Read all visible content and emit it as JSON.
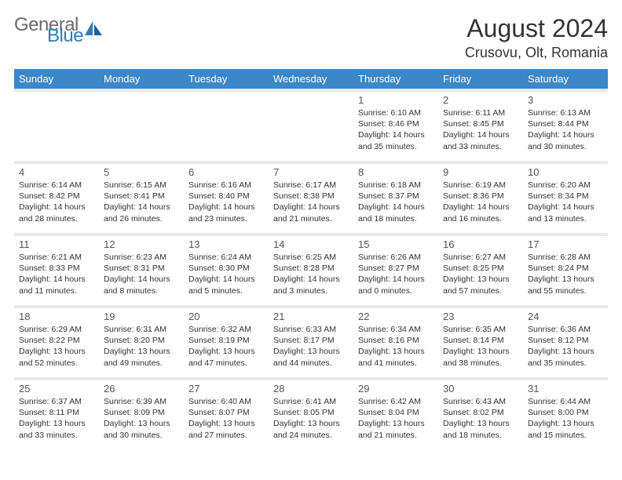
{
  "brand": {
    "part1": "General",
    "part2": "Blue"
  },
  "title": "August 2024",
  "location": "Crusovu, Olt, Romania",
  "colors": {
    "header_bg": "#3b87c8",
    "header_fg": "#ffffff",
    "sep": "#e7e9eb",
    "text": "#333333",
    "daynum": "#555555",
    "logo_gray": "#6a6a6a",
    "logo_blue": "#2f7bbf"
  },
  "typography": {
    "title_fontsize": 32,
    "location_fontsize": 18,
    "header_fontsize": 13,
    "daynum_fontsize": 13,
    "info_fontsize": 10.5
  },
  "day_headers": [
    "Sunday",
    "Monday",
    "Tuesday",
    "Wednesday",
    "Thursday",
    "Friday",
    "Saturday"
  ],
  "weeks": [
    [
      null,
      null,
      null,
      null,
      {
        "n": "1",
        "sr": "6:10 AM",
        "ss": "8:46 PM",
        "dl": "14 hours and 35 minutes."
      },
      {
        "n": "2",
        "sr": "6:11 AM",
        "ss": "8:45 PM",
        "dl": "14 hours and 33 minutes."
      },
      {
        "n": "3",
        "sr": "6:13 AM",
        "ss": "8:44 PM",
        "dl": "14 hours and 30 minutes."
      }
    ],
    [
      {
        "n": "4",
        "sr": "6:14 AM",
        "ss": "8:42 PM",
        "dl": "14 hours and 28 minutes."
      },
      {
        "n": "5",
        "sr": "6:15 AM",
        "ss": "8:41 PM",
        "dl": "14 hours and 26 minutes."
      },
      {
        "n": "6",
        "sr": "6:16 AM",
        "ss": "8:40 PM",
        "dl": "14 hours and 23 minutes."
      },
      {
        "n": "7",
        "sr": "6:17 AM",
        "ss": "8:38 PM",
        "dl": "14 hours and 21 minutes."
      },
      {
        "n": "8",
        "sr": "6:18 AM",
        "ss": "8:37 PM",
        "dl": "14 hours and 18 minutes."
      },
      {
        "n": "9",
        "sr": "6:19 AM",
        "ss": "8:36 PM",
        "dl": "14 hours and 16 minutes."
      },
      {
        "n": "10",
        "sr": "6:20 AM",
        "ss": "8:34 PM",
        "dl": "14 hours and 13 minutes."
      }
    ],
    [
      {
        "n": "11",
        "sr": "6:21 AM",
        "ss": "8:33 PM",
        "dl": "14 hours and 11 minutes."
      },
      {
        "n": "12",
        "sr": "6:23 AM",
        "ss": "8:31 PM",
        "dl": "14 hours and 8 minutes."
      },
      {
        "n": "13",
        "sr": "6:24 AM",
        "ss": "8:30 PM",
        "dl": "14 hours and 5 minutes."
      },
      {
        "n": "14",
        "sr": "6:25 AM",
        "ss": "8:28 PM",
        "dl": "14 hours and 3 minutes."
      },
      {
        "n": "15",
        "sr": "6:26 AM",
        "ss": "8:27 PM",
        "dl": "14 hours and 0 minutes."
      },
      {
        "n": "16",
        "sr": "6:27 AM",
        "ss": "8:25 PM",
        "dl": "13 hours and 57 minutes."
      },
      {
        "n": "17",
        "sr": "6:28 AM",
        "ss": "8:24 PM",
        "dl": "13 hours and 55 minutes."
      }
    ],
    [
      {
        "n": "18",
        "sr": "6:29 AM",
        "ss": "8:22 PM",
        "dl": "13 hours and 52 minutes."
      },
      {
        "n": "19",
        "sr": "6:31 AM",
        "ss": "8:20 PM",
        "dl": "13 hours and 49 minutes."
      },
      {
        "n": "20",
        "sr": "6:32 AM",
        "ss": "8:19 PM",
        "dl": "13 hours and 47 minutes."
      },
      {
        "n": "21",
        "sr": "6:33 AM",
        "ss": "8:17 PM",
        "dl": "13 hours and 44 minutes."
      },
      {
        "n": "22",
        "sr": "6:34 AM",
        "ss": "8:16 PM",
        "dl": "13 hours and 41 minutes."
      },
      {
        "n": "23",
        "sr": "6:35 AM",
        "ss": "8:14 PM",
        "dl": "13 hours and 38 minutes."
      },
      {
        "n": "24",
        "sr": "6:36 AM",
        "ss": "8:12 PM",
        "dl": "13 hours and 35 minutes."
      }
    ],
    [
      {
        "n": "25",
        "sr": "6:37 AM",
        "ss": "8:11 PM",
        "dl": "13 hours and 33 minutes."
      },
      {
        "n": "26",
        "sr": "6:39 AM",
        "ss": "8:09 PM",
        "dl": "13 hours and 30 minutes."
      },
      {
        "n": "27",
        "sr": "6:40 AM",
        "ss": "8:07 PM",
        "dl": "13 hours and 27 minutes."
      },
      {
        "n": "28",
        "sr": "6:41 AM",
        "ss": "8:05 PM",
        "dl": "13 hours and 24 minutes."
      },
      {
        "n": "29",
        "sr": "6:42 AM",
        "ss": "8:04 PM",
        "dl": "13 hours and 21 minutes."
      },
      {
        "n": "30",
        "sr": "6:43 AM",
        "ss": "8:02 PM",
        "dl": "13 hours and 18 minutes."
      },
      {
        "n": "31",
        "sr": "6:44 AM",
        "ss": "8:00 PM",
        "dl": "13 hours and 15 minutes."
      }
    ]
  ],
  "labels": {
    "sunrise": "Sunrise:",
    "sunset": "Sunset:",
    "daylight": "Daylight:"
  }
}
